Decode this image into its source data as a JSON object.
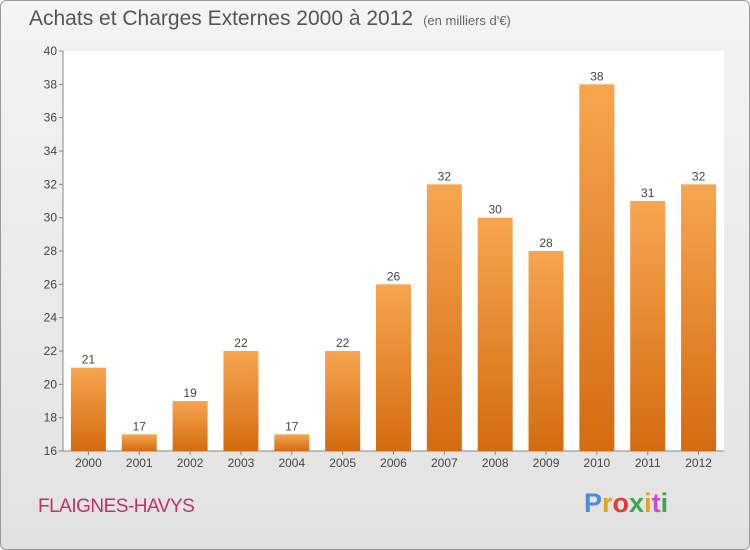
{
  "chart_data": {
    "type": "bar",
    "title": "Achats et Charges Externes 2000 à 2012",
    "subtitle": "(en milliers d'€)",
    "categories": [
      "2000",
      "2001",
      "2002",
      "2003",
      "2004",
      "2005",
      "2006",
      "2007",
      "2008",
      "2009",
      "2010",
      "2011",
      "2012"
    ],
    "values": [
      21,
      17,
      19,
      22,
      17,
      22,
      26,
      32,
      30,
      28,
      38,
      31,
      32
    ],
    "ylim": [
      16,
      40
    ],
    "yticks": [
      16,
      18,
      20,
      22,
      24,
      26,
      28,
      30,
      32,
      34,
      36,
      38,
      40
    ],
    "grid": false,
    "bar_color": "#f0912f"
  },
  "location": "FLAIGNES-HAVYS",
  "logo": {
    "letters": [
      "P",
      "r",
      "o",
      "x",
      "i",
      "t",
      "i"
    ],
    "colors": [
      "#4a90d9",
      "#e8a020",
      "#e03a3a",
      "#3aa84a",
      "#e8a020",
      "#d04ad0",
      "#3aa84a"
    ]
  }
}
